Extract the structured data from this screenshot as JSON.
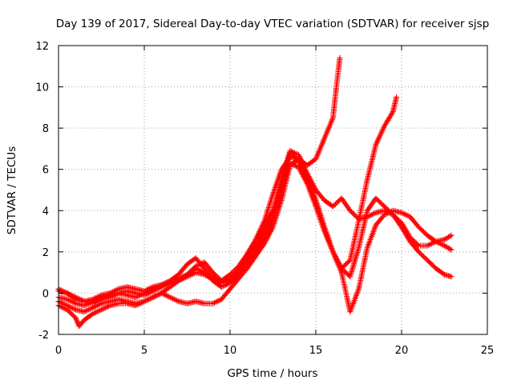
{
  "chart_data": {
    "type": "scatter",
    "title": "Day 139 of 2017, Sidereal Day-to-day VTEC variation (SDTVAR) for receiver sjsp",
    "xlabel": "GPS time / hours",
    "ylabel": "SDTVAR / TECUs",
    "xlim": [
      0,
      25
    ],
    "ylim": [
      -2,
      12
    ],
    "x_ticks": [
      0,
      5,
      10,
      15,
      20,
      25
    ],
    "y_ticks": [
      -2,
      0,
      2,
      4,
      6,
      8,
      10,
      12
    ],
    "x_tick_labels": [
      "0",
      "5",
      "10",
      "15",
      "20",
      "25"
    ],
    "y_tick_labels": [
      "-2",
      "0",
      "2",
      "4",
      "6",
      "8",
      "10",
      "12"
    ],
    "grid": true,
    "marker": "+",
    "series_color": "#ff0000",
    "series": [
      {
        "x": [
          0.0,
          0.5,
          1.0,
          1.5,
          2.0,
          2.5,
          3.0,
          3.5,
          4.0,
          4.5,
          5.0,
          5.5,
          6.0,
          6.5,
          7.0,
          7.5,
          8.0,
          8.5,
          9.0,
          9.5,
          10.0,
          10.5,
          11.0,
          11.5,
          12.0,
          12.5,
          13.0,
          13.5,
          14.0,
          14.5,
          15.0,
          15.5,
          16.0,
          16.2,
          16.4
        ],
        "y": [
          0.1,
          0.0,
          -0.3,
          -0.4,
          -0.3,
          -0.1,
          0.0,
          0.2,
          0.3,
          0.2,
          0.1,
          0.3,
          0.4,
          0.5,
          0.6,
          0.8,
          1.0,
          0.9,
          0.7,
          0.5,
          0.6,
          1.0,
          1.8,
          2.6,
          3.5,
          4.8,
          6.0,
          6.6,
          6.5,
          6.2,
          6.5,
          7.5,
          8.5,
          10.0,
          11.4
        ]
      },
      {
        "x": [
          0.0,
          0.5,
          1.0,
          1.5,
          2.0,
          2.5,
          3.0,
          3.5,
          4.0,
          4.5,
          5.0,
          5.5,
          6.0,
          6.5,
          7.0,
          7.5,
          8.0,
          8.5,
          9.0,
          9.5,
          10.0,
          10.5,
          11.0,
          11.5,
          12.0,
          12.5,
          13.0,
          13.5,
          14.0,
          14.5,
          15.0,
          15.5,
          16.0,
          16.5,
          17.0,
          17.5,
          18.0,
          18.5,
          19.0,
          19.5,
          19.7
        ],
        "y": [
          -0.4,
          -0.6,
          -0.8,
          -0.9,
          -0.7,
          -0.5,
          -0.4,
          -0.3,
          -0.4,
          -0.5,
          -0.4,
          -0.2,
          0.0,
          0.3,
          0.6,
          0.9,
          1.2,
          1.0,
          0.6,
          0.3,
          0.5,
          0.9,
          1.4,
          2.0,
          2.8,
          3.6,
          5.0,
          6.3,
          6.1,
          5.3,
          4.2,
          3.0,
          2.0,
          1.2,
          1.6,
          3.5,
          5.5,
          7.2,
          8.1,
          8.8,
          9.5
        ]
      },
      {
        "x": [
          0.0,
          0.5,
          1.0,
          1.2,
          1.5,
          2.0,
          2.5,
          3.0,
          3.5,
          4.0,
          4.5,
          5.0,
          5.5,
          6.0,
          6.5,
          7.0,
          7.5,
          8.0,
          8.5,
          9.0,
          9.5,
          10.0,
          10.5,
          11.0,
          11.5,
          12.0,
          12.5,
          13.0,
          13.5,
          14.0,
          14.5,
          15.0,
          15.5,
          16.0,
          16.5,
          17.0,
          17.5,
          18.0,
          18.5,
          19.0,
          19.5,
          20.0,
          20.5,
          21.0,
          21.5,
          22.0,
          22.5,
          22.9
        ],
        "y": [
          -0.6,
          -0.8,
          -1.2,
          -1.6,
          -1.3,
          -1.0,
          -0.8,
          -0.6,
          -0.5,
          -0.5,
          -0.6,
          -0.4,
          -0.2,
          0.0,
          -0.2,
          -0.4,
          -0.5,
          -0.4,
          -0.5,
          -0.5,
          -0.3,
          0.2,
          0.7,
          1.2,
          1.8,
          2.4,
          3.2,
          4.5,
          6.2,
          6.5,
          5.6,
          4.5,
          3.2,
          2.0,
          1.0,
          -0.9,
          0.2,
          2.2,
          3.3,
          3.8,
          4.0,
          3.9,
          3.7,
          3.2,
          2.8,
          2.5,
          2.3,
          2.1
        ]
      },
      {
        "x": [
          0.0,
          0.5,
          1.0,
          1.5,
          2.0,
          2.5,
          3.0,
          3.5,
          4.0,
          4.5,
          5.0,
          5.5,
          6.0,
          6.5,
          7.0,
          7.5,
          8.0,
          8.5,
          9.0,
          9.5,
          10.0,
          10.5,
          11.0,
          11.5,
          12.0,
          12.5,
          13.0,
          13.5,
          14.0,
          14.5,
          15.0,
          15.5,
          16.0,
          16.5,
          17.0,
          17.5,
          18.0,
          18.5,
          19.0,
          19.5,
          20.0,
          20.5,
          21.0,
          21.5,
          22.0,
          22.5,
          22.9
        ],
        "y": [
          0.2,
          0.0,
          -0.2,
          -0.4,
          -0.5,
          -0.3,
          -0.2,
          0.0,
          0.1,
          0.0,
          -0.1,
          0.1,
          0.3,
          0.5,
          0.7,
          0.9,
          1.3,
          1.5,
          1.0,
          0.6,
          0.9,
          1.3,
          1.9,
          2.6,
          3.3,
          4.0,
          5.2,
          6.8,
          6.4,
          5.6,
          4.5,
          3.2,
          2.0,
          1.2,
          0.8,
          2.2,
          4.0,
          4.6,
          4.2,
          3.8,
          3.2,
          2.5,
          2.0,
          1.6,
          1.2,
          0.9,
          0.8
        ]
      },
      {
        "x": [
          0.0,
          0.5,
          1.0,
          1.5,
          2.0,
          2.5,
          3.0,
          3.5,
          4.0,
          4.5,
          5.0,
          5.5,
          6.0,
          6.5,
          7.0,
          7.5,
          8.0,
          8.5,
          9.0,
          9.5,
          10.0,
          10.5,
          11.0,
          11.5,
          12.0,
          12.5,
          13.0,
          13.5,
          14.0,
          14.5,
          15.0,
          15.5,
          16.0,
          16.5,
          17.0,
          17.5,
          18.0,
          18.5,
          19.0,
          19.5,
          20.0,
          20.5,
          21.0,
          21.5,
          22.0,
          22.5,
          22.9
        ],
        "y": [
          -0.2,
          -0.3,
          -0.5,
          -0.6,
          -0.4,
          -0.2,
          -0.1,
          0.0,
          -0.1,
          -0.2,
          0.0,
          0.2,
          0.4,
          0.6,
          0.9,
          1.4,
          1.7,
          1.2,
          0.8,
          0.5,
          0.7,
          1.1,
          1.6,
          2.3,
          3.0,
          4.0,
          5.5,
          6.9,
          6.7,
          5.8,
          5.0,
          4.5,
          4.2,
          4.6,
          4.0,
          3.6,
          3.7,
          3.9,
          4.0,
          3.8,
          3.4,
          2.7,
          2.3,
          2.3,
          2.5,
          2.6,
          2.8
        ]
      }
    ]
  }
}
